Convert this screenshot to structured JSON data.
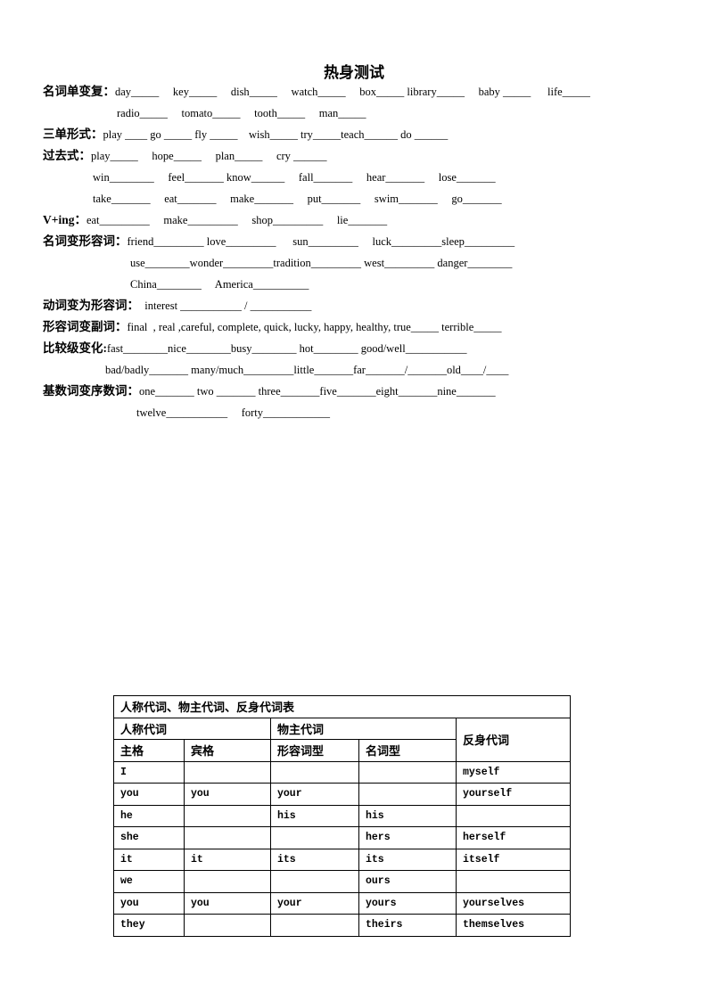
{
  "title": "热身测试",
  "lines": [
    {
      "label": "名词单变复：",
      "text": "day_____     key_____     dish_____     watch_____     box_____ library_____     baby _____      life_____"
    },
    {
      "label": "",
      "text": "radio_____     tomato_____     tooth_____     man_____"
    },
    {
      "label": "三单形式：",
      "text": "play ____ go _____ fly _____    wish_____ try_____teach______ do ______"
    },
    {
      "label": "过去式：",
      "text": "play_____     hope_____     plan_____     cry ______"
    },
    {
      "label": "",
      "text": "win________     feel_______ know______     fall_______     hear_______     lose_______"
    },
    {
      "label": "",
      "text": "take_______     eat_______     make_______     put_______     swim_______     go_______"
    },
    {
      "label": "V+ing：",
      "text": "eat_________     make_________     shop_________     lie_______"
    },
    {
      "label": "名词变形容词：",
      "text": "friend_________ love_________      sun_________     luck_________sleep_________"
    },
    {
      "label": "",
      "text": "use________wonder_________tradition_________ west_________ danger________"
    },
    {
      "label": "",
      "text": "China________     America__________"
    },
    {
      "label": "动词变为形容词：",
      "text": "  interest ___________ / ___________"
    },
    {
      "label": "形容词变副词：",
      "text": "final  , real ,careful, complete, quick, lucky, happy, healthy, true_____ terrible_____"
    },
    {
      "label": "比较级变化:",
      "text": "fast________nice________busy________ hot________ good/well___________"
    },
    {
      "label": "",
      "text": "bad/badly_______ many/much_________little_______far_______/_______old____/____"
    },
    {
      "label": "基数词变序数词：",
      "text": "one_______ two _______ three_______five_______eight_______nine_______"
    },
    {
      "label": "",
      "text": "twelve___________     forty____________"
    }
  ],
  "table": {
    "caption": "人称代词、物主代词、反身代词表",
    "group_personal": "人称代词",
    "group_possessive": "物主代词",
    "reflexive_header": "反身代词",
    "sub_headers": [
      "主格",
      "宾格",
      "形容词型",
      "名词型"
    ],
    "rows": [
      [
        "I",
        "",
        "",
        "",
        "myself"
      ],
      [
        "you",
        "you",
        "your",
        "",
        "yourself"
      ],
      [
        "he",
        "",
        "his",
        "his",
        ""
      ],
      [
        "she",
        "",
        "",
        "hers",
        "herself"
      ],
      [
        "it",
        "it",
        "its",
        "its",
        "itself"
      ],
      [
        "we",
        "",
        "",
        "ours",
        ""
      ],
      [
        "you",
        "you",
        "your",
        "yours",
        "yourselves"
      ],
      [
        "they",
        "",
        "",
        "theirs",
        "themselves"
      ]
    ]
  }
}
